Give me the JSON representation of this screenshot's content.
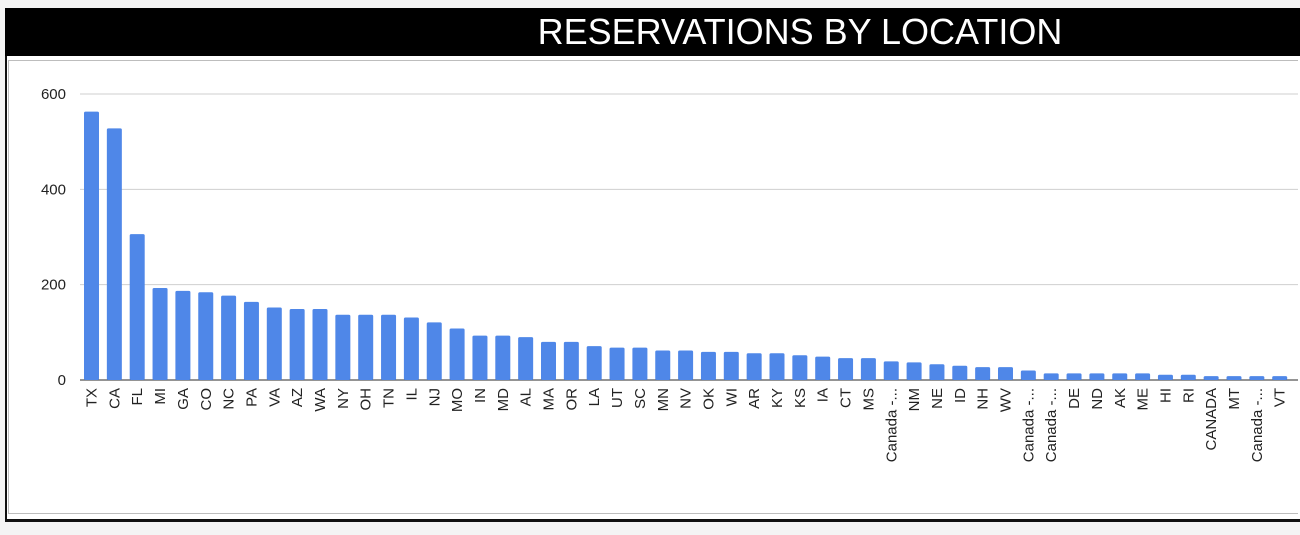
{
  "chart_data": {
    "type": "bar",
    "title": "RESERVATIONS BY LOCATION",
    "xlabel": "",
    "ylabel": "",
    "ylim": [
      0,
      600
    ],
    "yticks": [
      0,
      200,
      400,
      600
    ],
    "grid": true,
    "bar_color": "#4f87e8",
    "categories": [
      "TX",
      "CA",
      "FL",
      "MI",
      "GA",
      "CO",
      "NC",
      "PA",
      "VA",
      "AZ",
      "WA",
      "NY",
      "OH",
      "TN",
      "IL",
      "NJ",
      "MO",
      "IN",
      "MD",
      "AL",
      "MA",
      "OR",
      "LA",
      "UT",
      "SC",
      "MN",
      "NV",
      "OK",
      "WI",
      "AR",
      "KY",
      "KS",
      "IA",
      "CT",
      "MS",
      "Canada -...",
      "NM",
      "NE",
      "ID",
      "NH",
      "WV",
      "Canada -...",
      "Canada -...",
      "DE",
      "ND",
      "AK",
      "ME",
      "HI",
      "RI",
      "CANADA",
      "MT",
      "Canada -...",
      "VT"
    ],
    "values": [
      563,
      528,
      306,
      193,
      187,
      184,
      177,
      164,
      152,
      149,
      149,
      137,
      137,
      137,
      131,
      121,
      108,
      93,
      93,
      90,
      80,
      80,
      71,
      68,
      68,
      62,
      62,
      59,
      59,
      56,
      56,
      52,
      49,
      46,
      46,
      39,
      37,
      33,
      30,
      27,
      27,
      20,
      14,
      14,
      14,
      14,
      14,
      11,
      11,
      8,
      8,
      8,
      8
    ]
  }
}
